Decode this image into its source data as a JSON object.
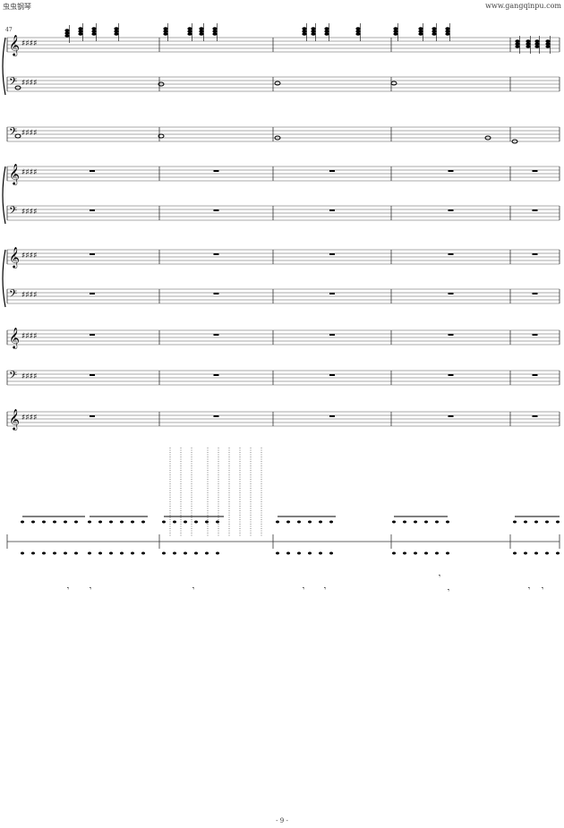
{
  "header": {
    "left": "虫虫钢琴",
    "right": "www.gangqinpu.com"
  },
  "measure_number": "47",
  "page_number": "- 9 -",
  "score": {
    "key_signature": "E major (4 sharps)",
    "systems_staves": 11
  }
}
